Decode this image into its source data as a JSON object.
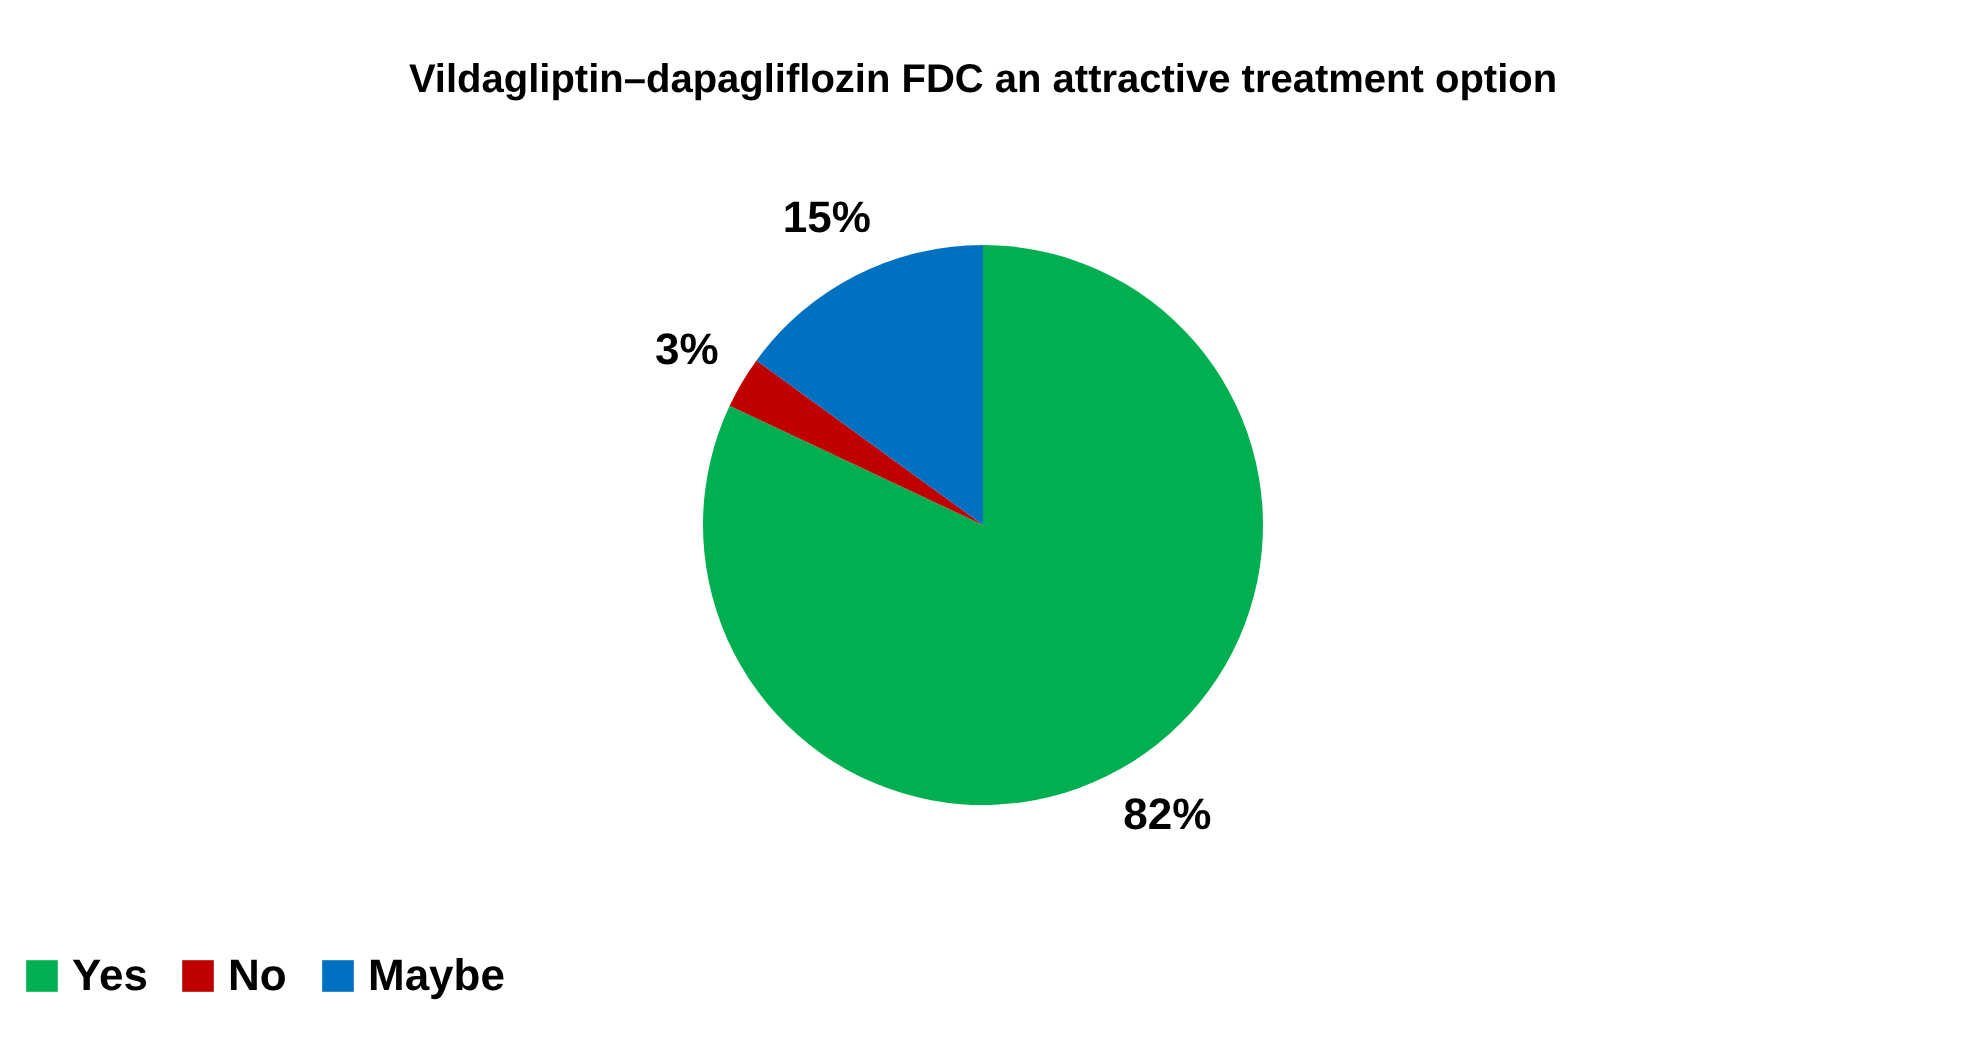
{
  "chart_data": {
    "type": "pie",
    "title": "Vildagliptin–dapagliflozin FDC an attractive treatment option",
    "categories": [
      "Yes",
      "No",
      "Maybe"
    ],
    "values": [
      82,
      3,
      15
    ],
    "colors": [
      "#00b050",
      "#c00000",
      "#0070c0"
    ],
    "value_labels": [
      "82%",
      "3%",
      "15%"
    ],
    "legend": "bottom"
  }
}
